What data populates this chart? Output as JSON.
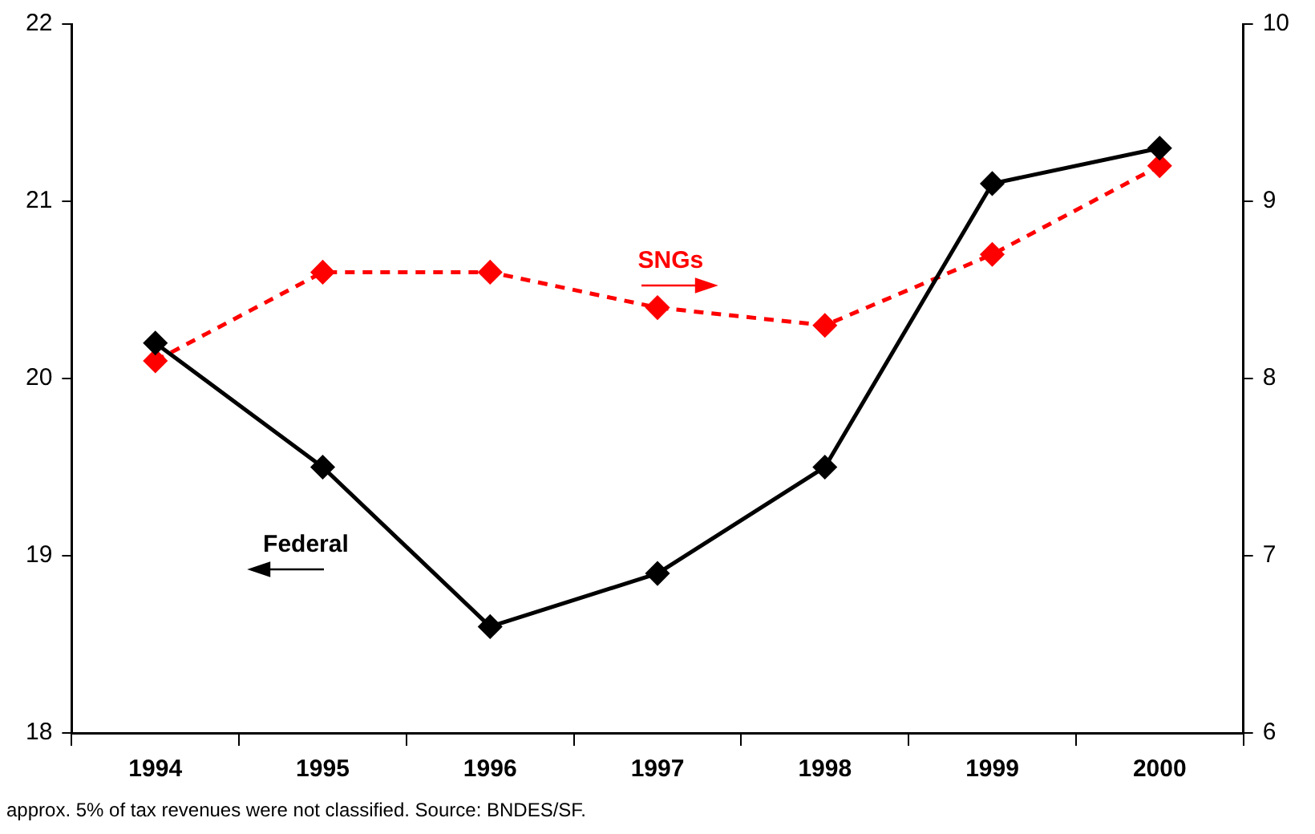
{
  "chart_data": {
    "type": "line",
    "categories": [
      "1994",
      "1995",
      "1996",
      "1997",
      "1998",
      "1999",
      "2000"
    ],
    "series": [
      {
        "name": "Federal",
        "color": "#000000",
        "values": [
          20.2,
          19.5,
          18.6,
          18.9,
          19.5,
          21.1,
          21.3
        ],
        "line_style": "solid"
      },
      {
        "name": "SNGs",
        "color": "#ff0000",
        "axis": "y2",
        "values": [
          8.1,
          8.6,
          8.6,
          8.4,
          8.3,
          8.7,
          9.2
        ],
        "line_style": "dashed"
      }
    ],
    "ylim": [
      18,
      22
    ],
    "yticks": [
      18,
      19,
      20,
      21,
      22
    ],
    "y2lim": [
      6,
      10
    ],
    "y2ticks": [
      6,
      7,
      8,
      9,
      10
    ],
    "marker": "diamond",
    "grid": false,
    "legend": false,
    "annotations": [
      "approx. 5% of tax revenues were not classified. Source: BNDES/SF."
    ]
  }
}
